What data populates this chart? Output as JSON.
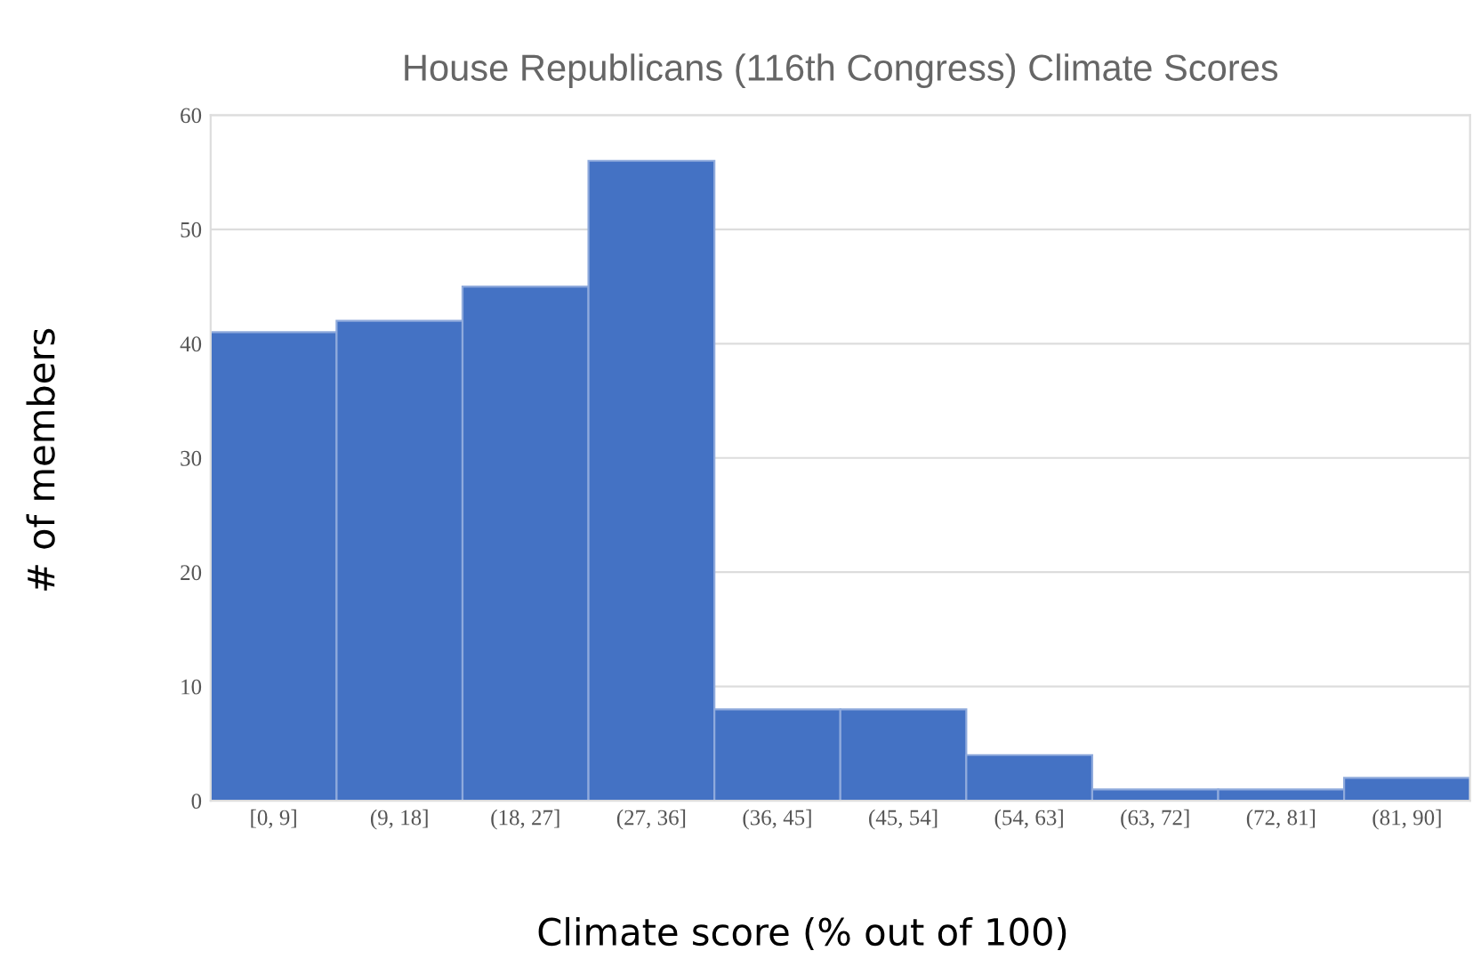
{
  "chart_data": {
    "type": "bar",
    "title": "House Republicans (116th Congress) Climate Scores",
    "xlabel": "Climate score (% out of 100)",
    "ylabel": "# of members",
    "categories": [
      "[0, 9]",
      "(9, 18]",
      "(18, 27]",
      "(27, 36]",
      "(36, 45]",
      "(45, 54]",
      "(54, 63]",
      "(63, 72]",
      "(72, 81]",
      "(81, 90]"
    ],
    "values": [
      41,
      42,
      45,
      56,
      8,
      8,
      4,
      1,
      1,
      2
    ],
    "color": "#4472c4",
    "ylim": [
      0,
      60
    ],
    "yticks": [
      0,
      10,
      20,
      30,
      40,
      50,
      60
    ],
    "grid": "y"
  }
}
